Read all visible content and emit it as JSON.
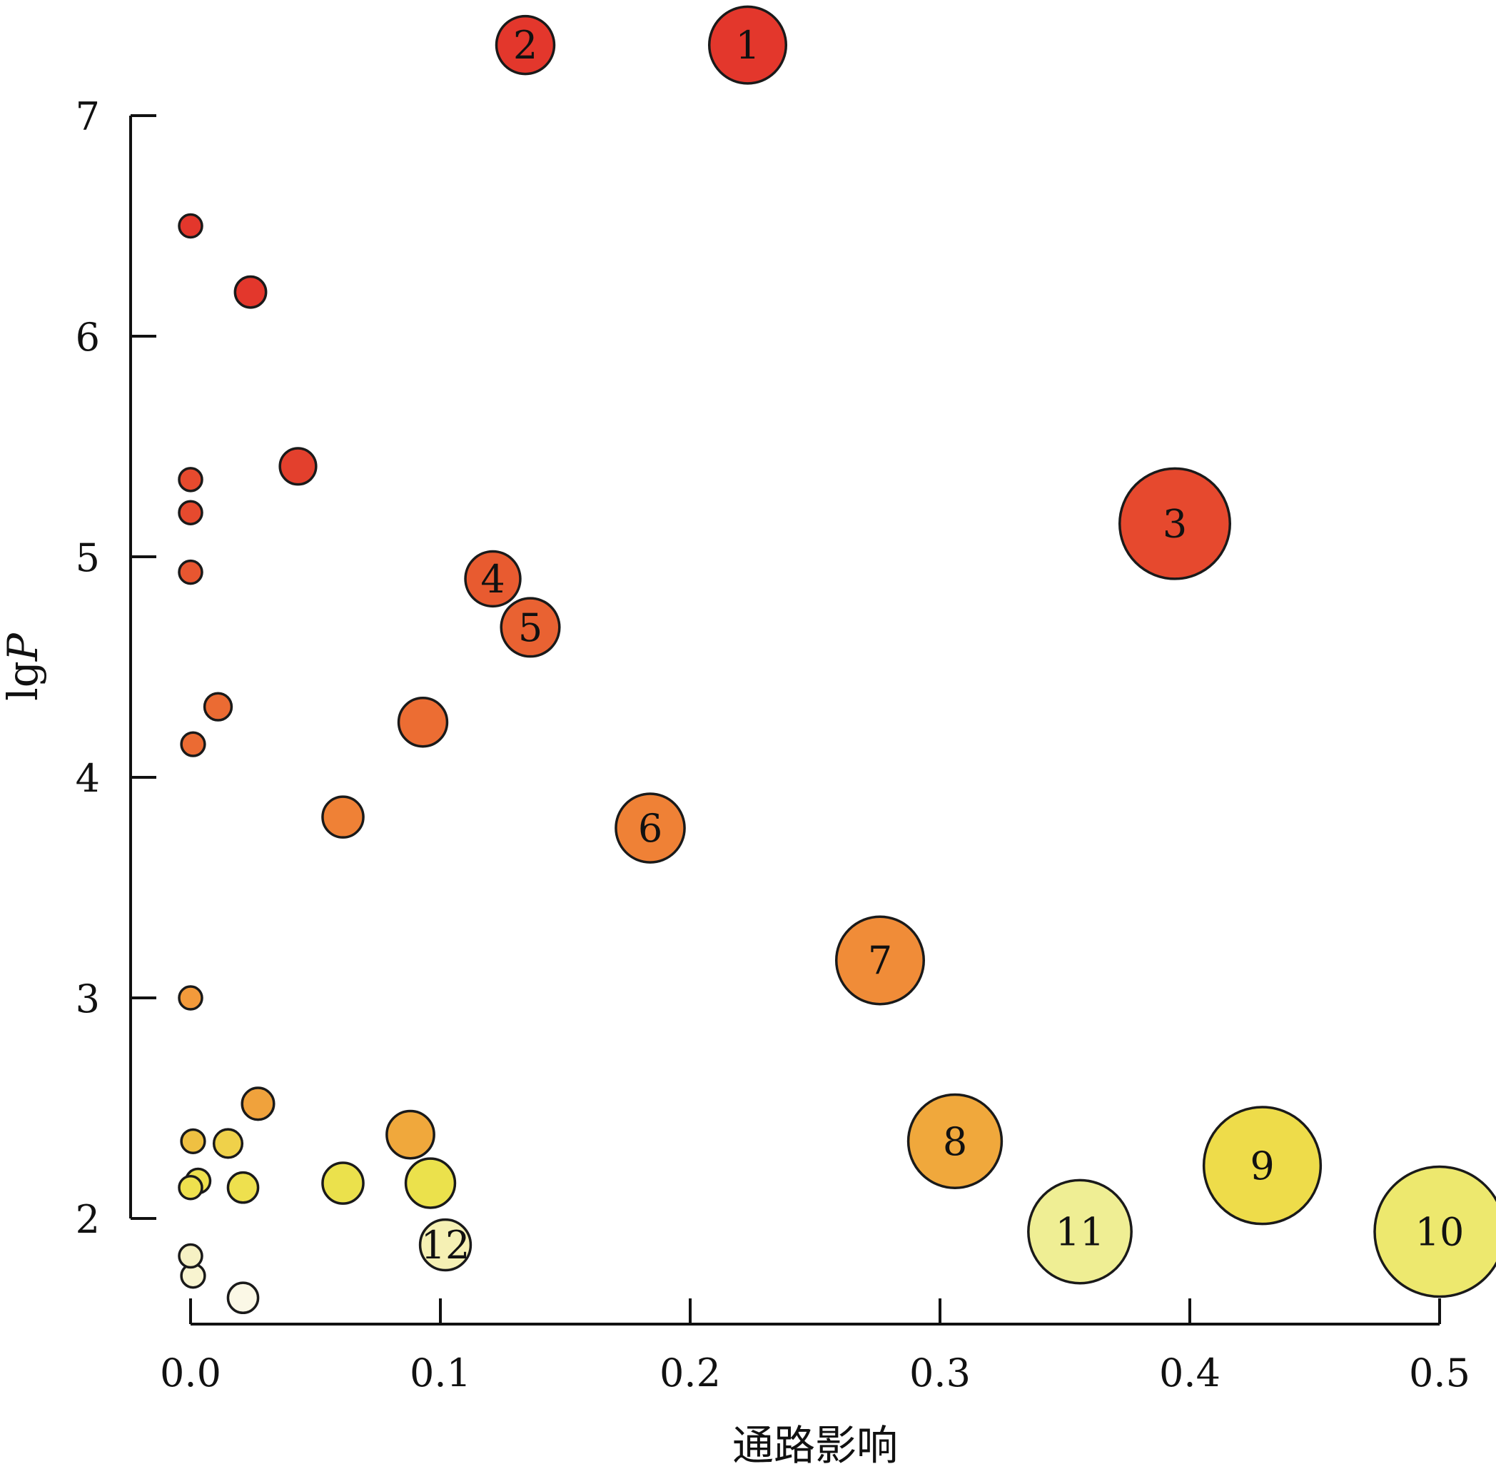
{
  "chart_data": {
    "type": "scatter",
    "xlabel": "通路影响",
    "ylabel": "lgP",
    "xlim": [
      0.0,
      0.5
    ],
    "ylim": [
      1.5,
      7.0
    ],
    "x_ticks": [
      "0.0",
      "0.1",
      "0.2",
      "0.3",
      "0.4",
      "0.5"
    ],
    "y_ticks": [
      "2",
      "3",
      "4",
      "5",
      "6",
      "7"
    ],
    "grid": false,
    "legend": "none",
    "size_encoding": "pathway impact",
    "color_encoding": "lgP (yellow low → red high)",
    "points": [
      {
        "label": "1",
        "x": 0.223,
        "y": 7.32,
        "color": "#e3372c"
      },
      {
        "label": "2",
        "x": 0.134,
        "y": 7.32,
        "color": "#e3372c"
      },
      {
        "label": "3",
        "x": 0.394,
        "y": 5.15,
        "color": "#e6492e"
      },
      {
        "label": "4",
        "x": 0.121,
        "y": 4.9,
        "color": "#e85b30"
      },
      {
        "label": "5",
        "x": 0.136,
        "y": 4.68,
        "color": "#e96232"
      },
      {
        "label": "6",
        "x": 0.184,
        "y": 3.77,
        "color": "#ef8136"
      },
      {
        "label": "7",
        "x": 0.276,
        "y": 3.17,
        "color": "#f08c38"
      },
      {
        "label": "8",
        "x": 0.306,
        "y": 2.35,
        "color": "#f0a83c"
      },
      {
        "label": "9",
        "x": 0.429,
        "y": 2.24,
        "color": "#eedc4a"
      },
      {
        "label": "10",
        "x": 0.5,
        "y": 1.94,
        "color": "#ede86e"
      },
      {
        "label": "11",
        "x": 0.356,
        "y": 1.94,
        "color": "#efee94"
      },
      {
        "label": "12",
        "x": 0.102,
        "y": 1.88,
        "color": "#f5f0b4"
      },
      {
        "label": "",
        "x": 0.0,
        "y": 6.5,
        "color": "#e3372c"
      },
      {
        "label": "",
        "x": 0.024,
        "y": 6.2,
        "color": "#e3372c"
      },
      {
        "label": "",
        "x": 0.043,
        "y": 5.41,
        "color": "#e3402d"
      },
      {
        "label": "",
        "x": 0.0,
        "y": 5.35,
        "color": "#e64a2e"
      },
      {
        "label": "",
        "x": 0.0,
        "y": 5.2,
        "color": "#e64a2e"
      },
      {
        "label": "",
        "x": 0.0,
        "y": 4.93,
        "color": "#e85630"
      },
      {
        "label": "",
        "x": 0.011,
        "y": 4.32,
        "color": "#eb6b33"
      },
      {
        "label": "",
        "x": 0.001,
        "y": 4.15,
        "color": "#eb6b33"
      },
      {
        "label": "",
        "x": 0.093,
        "y": 4.25,
        "color": "#ec6d33"
      },
      {
        "label": "",
        "x": 0.061,
        "y": 3.82,
        "color": "#ef8136"
      },
      {
        "label": "",
        "x": 0.0,
        "y": 3.0,
        "color": "#f39a3b"
      },
      {
        "label": "",
        "x": 0.027,
        "y": 2.52,
        "color": "#f0a23c"
      },
      {
        "label": "",
        "x": 0.088,
        "y": 2.38,
        "color": "#f0a83c"
      },
      {
        "label": "",
        "x": 0.001,
        "y": 2.35,
        "color": "#efc042"
      },
      {
        "label": "",
        "x": 0.015,
        "y": 2.34,
        "color": "#efd14a"
      },
      {
        "label": "",
        "x": 0.003,
        "y": 2.17,
        "color": "#eee04e"
      },
      {
        "label": "",
        "x": 0.0,
        "y": 2.14,
        "color": "#eee04e"
      },
      {
        "label": "",
        "x": 0.021,
        "y": 2.14,
        "color": "#eee04e"
      },
      {
        "label": "",
        "x": 0.061,
        "y": 2.16,
        "color": "#ebe14c"
      },
      {
        "label": "",
        "x": 0.096,
        "y": 2.16,
        "color": "#ebe14c"
      },
      {
        "label": "",
        "x": 0.0,
        "y": 1.83,
        "color": "#f6f1c4"
      },
      {
        "label": "",
        "x": 0.001,
        "y": 1.74,
        "color": "#f8f4d0"
      },
      {
        "label": "",
        "x": 0.021,
        "y": 1.64,
        "color": "#fbf8e6"
      }
    ]
  }
}
